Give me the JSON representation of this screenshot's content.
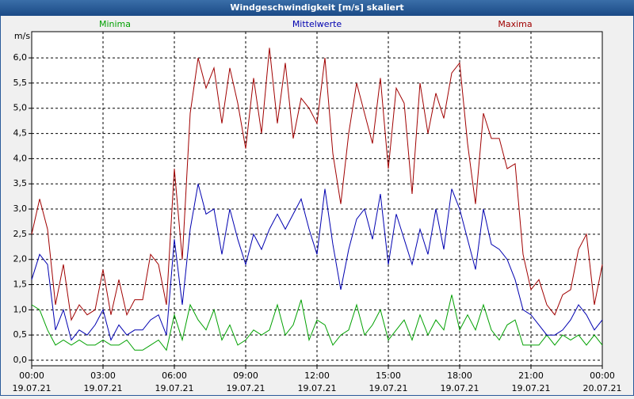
{
  "chart_data": {
    "type": "line",
    "title": "Windgeschwindigkeit [m/s] skaliert",
    "y_label": "m/s",
    "x": [
      0,
      20,
      40,
      60,
      80,
      100,
      120,
      140,
      160,
      180,
      200,
      220,
      240,
      260,
      280,
      300,
      320,
      340,
      360,
      380,
      400,
      420,
      440,
      460,
      480,
      500,
      520,
      540,
      560,
      580,
      600,
      620,
      640,
      660,
      680,
      700,
      720,
      740,
      760,
      780,
      800,
      820,
      840,
      860,
      880,
      900,
      920,
      940,
      960,
      980,
      1000,
      1020,
      1040,
      1060,
      1080,
      1100,
      1120,
      1140,
      1160,
      1180,
      1200,
      1220,
      1240,
      1260,
      1280,
      1300,
      1320,
      1340,
      1360,
      1380,
      1400,
      1420,
      1440
    ],
    "xlim": [
      0,
      1440
    ],
    "xticks": [
      {
        "value": 0,
        "label": "00:00",
        "date": "19.07.21"
      },
      {
        "value": 180,
        "label": "03:00",
        "date": "19.07.21"
      },
      {
        "value": 360,
        "label": "06:00",
        "date": "19.07.21"
      },
      {
        "value": 540,
        "label": "09:00",
        "date": "19.07.21"
      },
      {
        "value": 720,
        "label": "12:00",
        "date": "19.07.21"
      },
      {
        "value": 900,
        "label": "15:00",
        "date": "19.07.21"
      },
      {
        "value": 1080,
        "label": "18:00",
        "date": "19.07.21"
      },
      {
        "value": 1260,
        "label": "21:00",
        "date": "19.07.21"
      },
      {
        "value": 1440,
        "label": "00:00",
        "date": "20.07.21"
      }
    ],
    "ylim": [
      -0.11,
      6.52
    ],
    "yticks": [
      {
        "value": 0,
        "label": "0,0"
      },
      {
        "value": 0.5,
        "label": "0,5"
      },
      {
        "value": 1,
        "label": "1,0"
      },
      {
        "value": 1.5,
        "label": "1,5"
      },
      {
        "value": 2,
        "label": "2,0"
      },
      {
        "value": 2.5,
        "label": "2,5"
      },
      {
        "value": 3,
        "label": "3,0"
      },
      {
        "value": 3.5,
        "label": "3,5"
      },
      {
        "value": 4,
        "label": "4,0"
      },
      {
        "value": 4.5,
        "label": "4,5"
      },
      {
        "value": 5,
        "label": "5,0"
      },
      {
        "value": 5.5,
        "label": "5,5"
      },
      {
        "value": 6,
        "label": "6,0"
      }
    ],
    "grid": true,
    "series": [
      {
        "name": "Minima",
        "color": "#00a000",
        "values": [
          1.1,
          1.0,
          0.6,
          0.3,
          0.4,
          0.3,
          0.4,
          0.3,
          0.3,
          0.4,
          0.3,
          0.3,
          0.4,
          0.2,
          0.2,
          0.3,
          0.4,
          0.2,
          0.9,
          0.4,
          1.1,
          0.8,
          0.6,
          1.0,
          0.4,
          0.7,
          0.3,
          0.4,
          0.6,
          0.5,
          0.6,
          1.1,
          0.5,
          0.7,
          1.2,
          0.4,
          0.8,
          0.7,
          0.3,
          0.5,
          0.6,
          1.1,
          0.5,
          0.7,
          1.0,
          0.4,
          0.6,
          0.8,
          0.4,
          0.9,
          0.5,
          0.8,
          0.6,
          1.3,
          0.6,
          0.9,
          0.6,
          1.1,
          0.6,
          0.4,
          0.7,
          0.8,
          0.3,
          0.3,
          0.3,
          0.5,
          0.3,
          0.5,
          0.4,
          0.5,
          0.3,
          0.5,
          0.3
        ]
      },
      {
        "name": "Mittelwerte",
        "color": "#0000b0",
        "values": [
          1.6,
          2.1,
          1.9,
          0.6,
          1.0,
          0.4,
          0.6,
          0.5,
          0.7,
          1.0,
          0.4,
          0.7,
          0.5,
          0.6,
          0.6,
          0.8,
          0.9,
          0.5,
          2.4,
          1.1,
          2.6,
          3.5,
          2.9,
          3.0,
          2.1,
          3.0,
          2.4,
          1.9,
          2.5,
          2.2,
          2.6,
          2.9,
          2.6,
          2.9,
          3.2,
          2.6,
          2.1,
          3.4,
          2.3,
          1.4,
          2.2,
          2.8,
          3.0,
          2.4,
          3.3,
          1.9,
          2.9,
          2.4,
          1.9,
          2.6,
          2.1,
          3.0,
          2.2,
          3.4,
          3.0,
          2.4,
          1.8,
          3.0,
          2.3,
          2.2,
          2.0,
          1.6,
          1.0,
          0.9,
          0.7,
          0.5,
          0.5,
          0.6,
          0.8,
          1.1,
          0.9,
          0.6,
          0.8
        ]
      },
      {
        "name": "Maxima",
        "color": "#a00000",
        "values": [
          2.5,
          3.2,
          2.6,
          1.1,
          1.9,
          0.8,
          1.1,
          0.9,
          1.0,
          1.8,
          0.9,
          1.6,
          0.9,
          1.2,
          1.2,
          2.1,
          1.9,
          1.1,
          3.8,
          2.0,
          4.9,
          6.0,
          5.4,
          5.8,
          4.7,
          5.8,
          5.1,
          4.2,
          5.6,
          4.5,
          6.2,
          4.7,
          5.9,
          4.4,
          5.2,
          5.0,
          4.7,
          6.0,
          4.1,
          3.1,
          4.5,
          5.5,
          4.9,
          4.3,
          5.6,
          3.8,
          5.4,
          5.1,
          3.3,
          5.5,
          4.5,
          5.3,
          4.8,
          5.7,
          5.9,
          4.3,
          3.1,
          4.9,
          4.4,
          4.4,
          3.8,
          3.9,
          2.1,
          1.4,
          1.6,
          1.1,
          0.9,
          1.3,
          1.4,
          2.2,
          2.5,
          1.1,
          1.9
        ]
      }
    ]
  }
}
